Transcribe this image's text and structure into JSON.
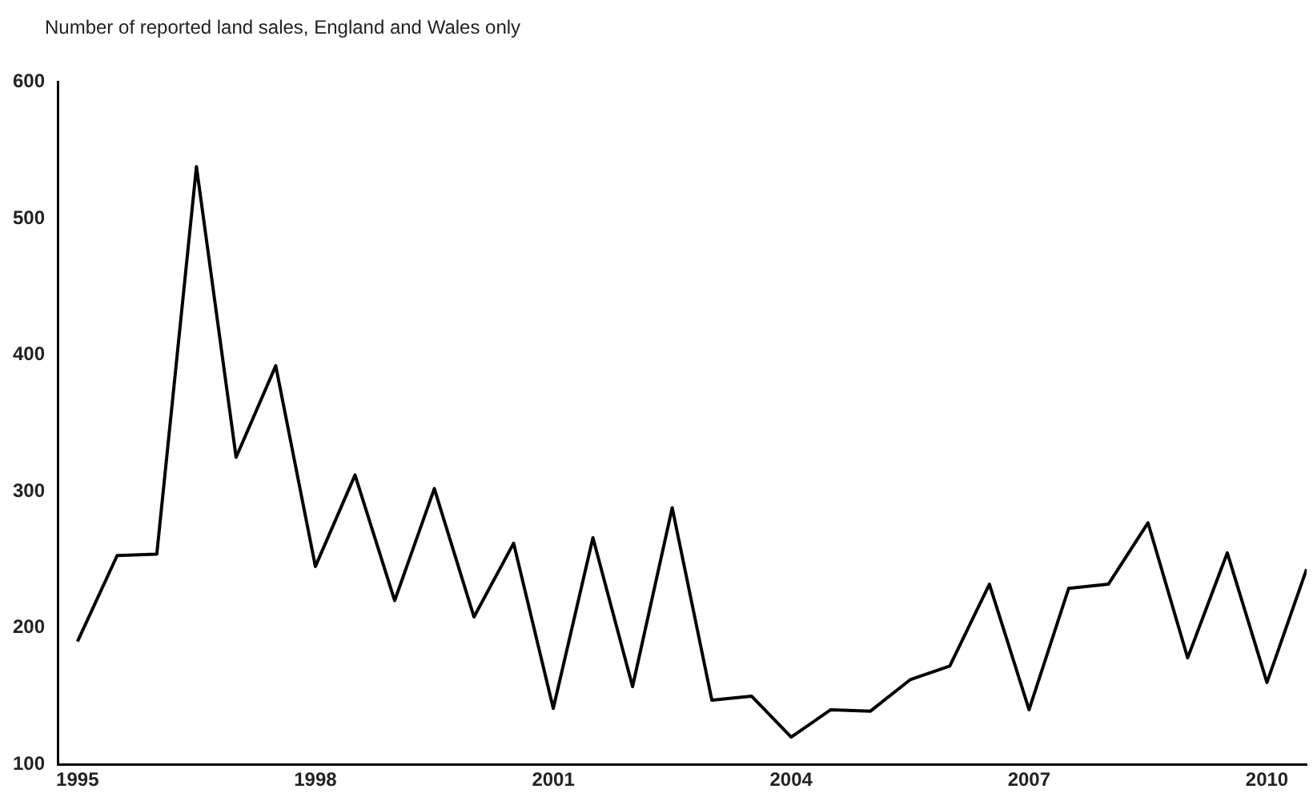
{
  "chart_data": {
    "type": "line",
    "title": "Number of reported land sales, England and Wales only",
    "x": [
      1995,
      1995.5,
      1996,
      1996.5,
      1997,
      1997.5,
      1998,
      1998.5,
      1999,
      1999.5,
      2000,
      2000.5,
      2001,
      2001.5,
      2002,
      2002.5,
      2003,
      2003.5,
      2004,
      2004.5,
      2005,
      2005.5,
      2006,
      2006.5,
      2007,
      2007.5,
      2008,
      2008.5,
      2009,
      2009.5,
      2010,
      2010.5
    ],
    "series": [
      {
        "color": "#000000",
        "values": [
          190,
          253,
          254,
          538,
          325,
          392,
          245,
          312,
          220,
          302,
          208,
          262,
          141,
          266,
          157,
          288,
          147,
          150,
          120,
          140,
          139,
          162,
          172,
          232,
          140,
          229,
          232,
          277,
          178,
          255,
          160,
          243
        ]
      }
    ],
    "xlim": [
      1994.75,
      2010.5
    ],
    "xticks": [
      1995,
      1998,
      2001,
      2004,
      2007,
      2010
    ],
    "ylim": [
      100,
      600
    ],
    "yticks": [
      100,
      200,
      300,
      400,
      500,
      600
    ],
    "grid": false,
    "legend": false,
    "marker": "none",
    "line_style": "solid"
  }
}
